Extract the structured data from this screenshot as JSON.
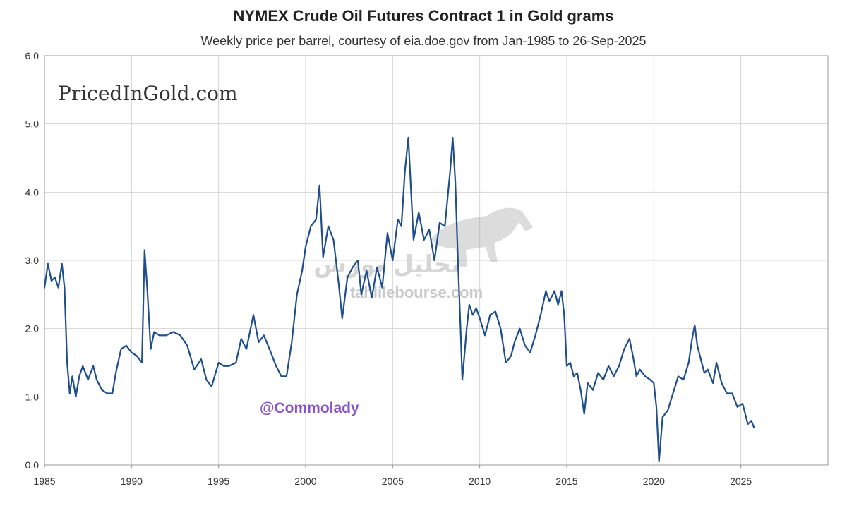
{
  "chart_data": {
    "type": "line",
    "title": "NYMEX Crude Oil Futures Contract 1 in Gold grams",
    "subtitle": "Weekly price per barrel, courtesy of eia.doe.gov from Jan-1985 to 26-Sep-2025",
    "xlabel": "",
    "ylabel": "",
    "xlim": [
      1985,
      2030
    ],
    "ylim": [
      0,
      6
    ],
    "x_ticks": [
      1985,
      1990,
      1995,
      2000,
      2005,
      2010,
      2015,
      2020,
      2025
    ],
    "x_tick_labels": [
      "1985",
      "1990",
      "1995",
      "2000",
      "2005",
      "2010",
      "2015",
      "2020",
      "2025"
    ],
    "y_ticks": [
      0,
      1,
      2,
      3,
      4,
      5,
      6
    ],
    "y_tick_labels": [
      "0.0",
      "1.0",
      "2.0",
      "3.0",
      "4.0",
      "5.0",
      "6.0"
    ],
    "grid": true,
    "legend": "none",
    "line_color": "#1f4e8c",
    "series": [
      {
        "x": [
          1985.0,
          1985.2,
          1985.4,
          1985.6,
          1985.8,
          1986.0,
          1986.15,
          1986.3,
          1986.45,
          1986.6,
          1986.8,
          1987.0,
          1987.2,
          1987.5,
          1987.8,
          1988.0,
          1988.3,
          1988.6,
          1988.9,
          1989.1,
          1989.4,
          1989.7,
          1990.0,
          1990.3,
          1990.6,
          1990.75,
          1990.9,
          1991.1,
          1991.3,
          1991.6,
          1992.0,
          1992.4,
          1992.8,
          1993.2,
          1993.6,
          1994.0,
          1994.3,
          1994.6,
          1995.0,
          1995.3,
          1995.6,
          1996.0,
          1996.3,
          1996.6,
          1997.0,
          1997.3,
          1997.6,
          1998.0,
          1998.3,
          1998.6,
          1998.9,
          1999.2,
          1999.5,
          1999.8,
          2000.0,
          2000.3,
          2000.6,
          2000.8,
          2001.0,
          2001.3,
          2001.6,
          2001.9,
          2002.1,
          2002.4,
          2002.7,
          2003.0,
          2003.2,
          2003.5,
          2003.8,
          2004.1,
          2004.4,
          2004.7,
          2005.0,
          2005.3,
          2005.5,
          2005.7,
          2005.9,
          2006.2,
          2006.5,
          2006.8,
          2007.1,
          2007.4,
          2007.7,
          2008.0,
          2008.3,
          2008.45,
          2008.6,
          2008.75,
          2008.9,
          2009.0,
          2009.1,
          2009.25,
          2009.4,
          2009.6,
          2009.8,
          2010.0,
          2010.3,
          2010.6,
          2010.9,
          2011.2,
          2011.5,
          2011.8,
          2012.0,
          2012.3,
          2012.6,
          2012.9,
          2013.2,
          2013.5,
          2013.8,
          2014.0,
          2014.3,
          2014.5,
          2014.7,
          2014.85,
          2015.0,
          2015.2,
          2015.4,
          2015.6,
          2015.8,
          2016.0,
          2016.2,
          2016.5,
          2016.8,
          2017.1,
          2017.4,
          2017.7,
          2018.0,
          2018.3,
          2018.6,
          2018.8,
          2019.0,
          2019.2,
          2019.5,
          2019.8,
          2020.0,
          2020.15,
          2020.3,
          2020.5,
          2020.8,
          2021.1,
          2021.4,
          2021.7,
          2022.0,
          2022.2,
          2022.35,
          2022.5,
          2022.7,
          2022.9,
          2023.1,
          2023.4,
          2023.6,
          2023.9,
          2024.2,
          2024.5,
          2024.8,
          2025.1,
          2025.4,
          2025.6,
          2025.75
        ],
        "y": [
          2.6,
          2.95,
          2.7,
          2.75,
          2.6,
          2.95,
          2.6,
          1.5,
          1.05,
          1.3,
          1.0,
          1.3,
          1.45,
          1.25,
          1.45,
          1.25,
          1.1,
          1.05,
          1.05,
          1.35,
          1.7,
          1.75,
          1.65,
          1.6,
          1.5,
          3.15,
          2.6,
          1.7,
          1.95,
          1.9,
          1.9,
          1.95,
          1.9,
          1.75,
          1.4,
          1.55,
          1.25,
          1.15,
          1.5,
          1.45,
          1.45,
          1.5,
          1.85,
          1.7,
          2.2,
          1.8,
          1.9,
          1.65,
          1.45,
          1.3,
          1.3,
          1.8,
          2.5,
          2.85,
          3.2,
          3.5,
          3.6,
          4.1,
          3.05,
          3.5,
          3.3,
          2.65,
          2.15,
          2.75,
          2.9,
          3.0,
          2.5,
          2.85,
          2.45,
          2.9,
          2.6,
          3.4,
          3.0,
          3.6,
          3.5,
          4.3,
          4.8,
          3.3,
          3.7,
          3.3,
          3.45,
          3.0,
          3.55,
          3.5,
          4.3,
          4.8,
          4.15,
          3.0,
          2.0,
          1.25,
          1.55,
          2.0,
          2.35,
          2.2,
          2.3,
          2.15,
          1.9,
          2.2,
          2.25,
          2.0,
          1.5,
          1.6,
          1.8,
          2.0,
          1.75,
          1.65,
          1.9,
          2.2,
          2.55,
          2.4,
          2.55,
          2.35,
          2.55,
          2.2,
          1.45,
          1.5,
          1.3,
          1.35,
          1.1,
          0.75,
          1.2,
          1.1,
          1.35,
          1.25,
          1.45,
          1.3,
          1.45,
          1.7,
          1.85,
          1.6,
          1.3,
          1.4,
          1.3,
          1.25,
          1.2,
          0.85,
          0.05,
          0.7,
          0.8,
          1.05,
          1.3,
          1.25,
          1.5,
          1.85,
          2.05,
          1.75,
          1.55,
          1.35,
          1.4,
          1.2,
          1.5,
          1.2,
          1.05,
          1.05,
          0.85,
          0.9,
          0.6,
          0.65,
          0.55
        ]
      }
    ]
  },
  "watermarks": {
    "site": "PricedInGold.com",
    "handle": "@Commolady",
    "bourse_url": "tahlilebourse.com",
    "bourse_name_fa": "تحلیل بورس"
  }
}
